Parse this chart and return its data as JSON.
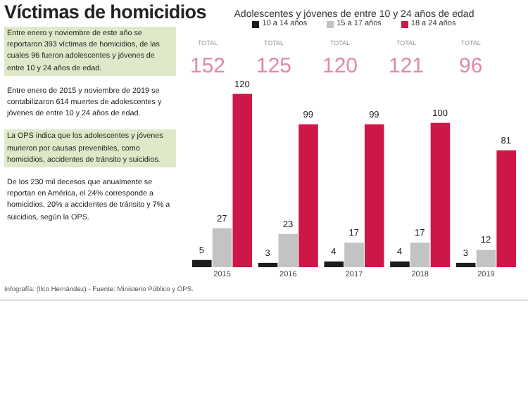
{
  "chart_data": {
    "type": "bar",
    "title": "Víctimas de homicidios",
    "subtitle": "Adolescentes y jóvenes de entre 10 y 24 años de edad",
    "categories": [
      "2015",
      "2016",
      "2017",
      "2018",
      "2019"
    ],
    "series": [
      {
        "name": "10 a 14 años",
        "color": "#1c1c1c",
        "values": [
          5,
          3,
          4,
          4,
          3
        ]
      },
      {
        "name": "15 a 17 años",
        "color": "#c3c3c3",
        "values": [
          27,
          23,
          17,
          17,
          12
        ]
      },
      {
        "name": "18 a 24 años",
        "color": "#cc1747",
        "values": [
          120,
          99,
          99,
          100,
          81
        ]
      }
    ],
    "totals": [
      "TOTAL\n152",
      "TOTAL\n125",
      "TOTAL\n120",
      "TOTAL\n121",
      "TOTAL\n96"
    ],
    "data_labels": true,
    "legend": "top",
    "annotations": [
      "Entre enero y noviembre de este año se reportaron 393 víctimas de homicidios, de las cuales 96 fueron adolescentes y jóvenes de entre 10 y 24 años de edad.",
      "Entre enero de 2015 y noviembre de 2019 se contabilizaron 614 muertes de adolescentes y jóvenes de entre 10 y 24 años de edad.",
      "La OPS indica que los adolescentes y jóvenes murieron por causas prevenibles, como homicidios, accidentes de tránsito y suicidios.",
      "De los 230 mil decesos que anualmente se reportan en América, el 24% corresponde a homicidios, 20% a accidentes de tránsito y 7% a suicidios, según la OPS.",
      "Infografía: (Ilco Hernández) - Fuente: Ministerio Público y OPS."
    ]
  }
}
